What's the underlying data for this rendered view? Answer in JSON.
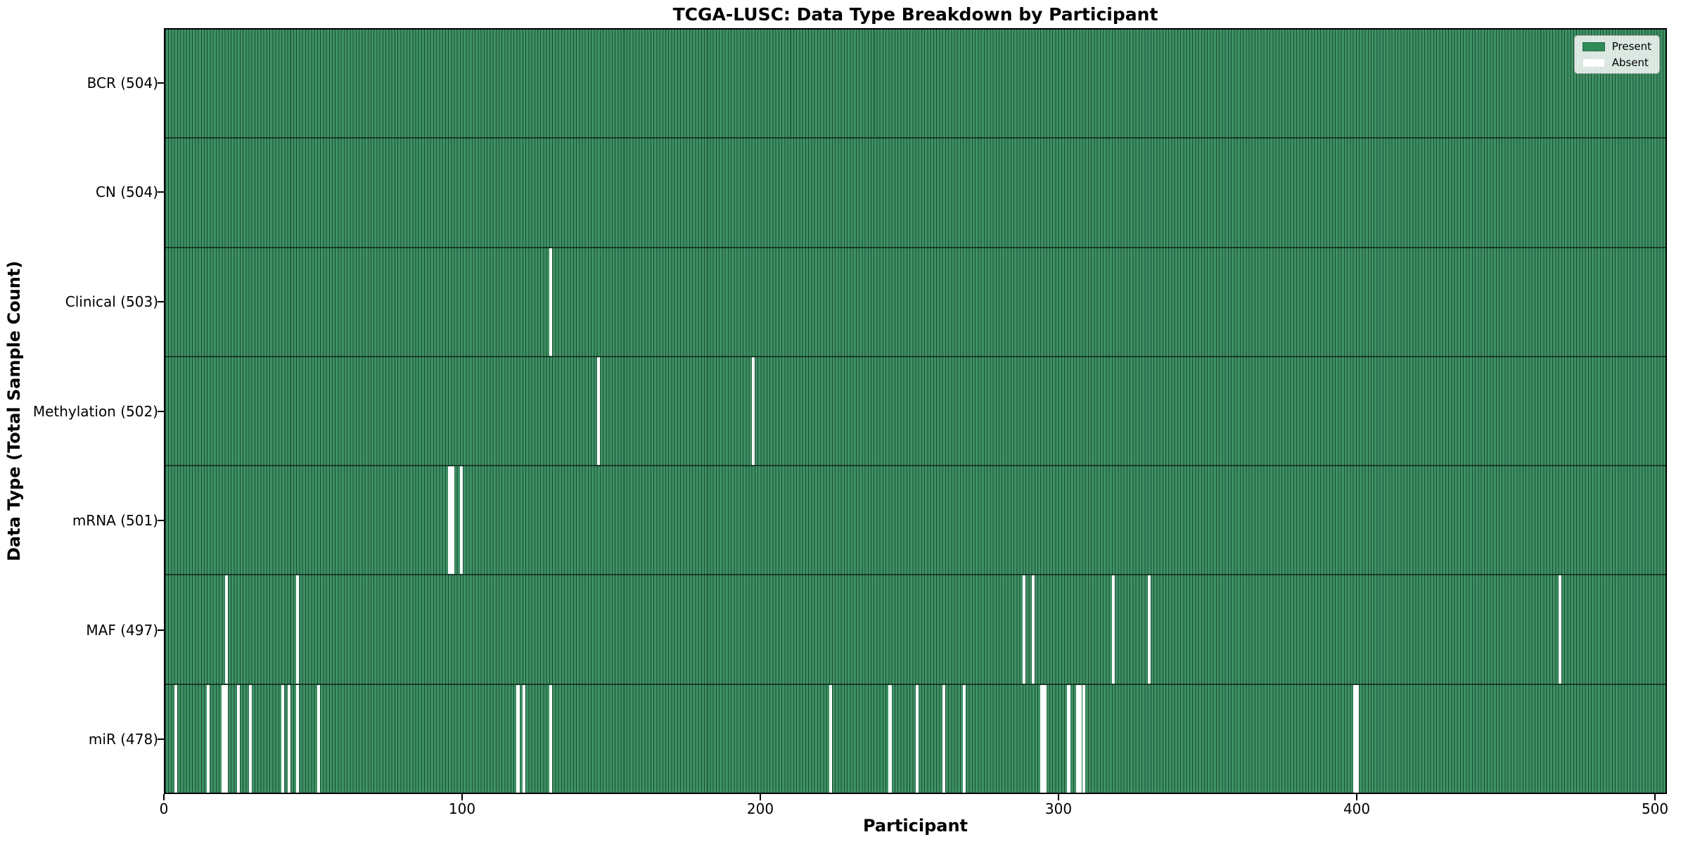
{
  "figure": {
    "background": "#ffffff"
  },
  "chart_data": {
    "type": "heatmap",
    "title": "TCGA-LUSC: Data Type Breakdown by Participant",
    "xlabel": "Participant",
    "ylabel": "Data Type (Total Sample Count)",
    "n_participants": 504,
    "xlim": [
      0,
      504
    ],
    "x_ticks": [
      0,
      100,
      200,
      300,
      400,
      500
    ],
    "grid": false,
    "legend": {
      "position": "upper right",
      "entries": [
        {
          "label": "Present",
          "color": "#2e8b57",
          "edge": "#2a6b48"
        },
        {
          "label": "Absent",
          "color": "#ffffff",
          "edge": "#e2e2e2"
        }
      ]
    },
    "colors": {
      "present_fill": "#3e9265",
      "bar_edge": "#1c4a32",
      "absent": "#ffffff",
      "row_divider": "rgba(0,0,0,0.55)",
      "spine": "#000000"
    },
    "rows": [
      {
        "data_type": "BCR",
        "label": "BCR (504)",
        "total": 504,
        "absent_participants": []
      },
      {
        "data_type": "CN",
        "label": "CN (504)",
        "total": 504,
        "absent_participants": []
      },
      {
        "data_type": "Clinical",
        "label": "Clinical (503)",
        "total": 503,
        "absent_participants": [
          129
        ]
      },
      {
        "data_type": "Methylation",
        "label": "Methylation (502)",
        "total": 502,
        "absent_participants": [
          145,
          197
        ]
      },
      {
        "data_type": "mRNA",
        "label": "mRNA (501)",
        "total": 501,
        "absent_participants": [
          95,
          96,
          99
        ]
      },
      {
        "data_type": "MAF",
        "label": "MAF (497)",
        "total": 497,
        "absent_participants": [
          20,
          44,
          288,
          291,
          318,
          330,
          468
        ]
      },
      {
        "data_type": "miR",
        "label": "miR (478)",
        "total": 478,
        "absent_participants": [
          3,
          14,
          19,
          20,
          24,
          28,
          39,
          41,
          44,
          51,
          118,
          120,
          129,
          223,
          243,
          252,
          261,
          268,
          294,
          295,
          303,
          306,
          307,
          308,
          399,
          400
        ]
      }
    ]
  }
}
